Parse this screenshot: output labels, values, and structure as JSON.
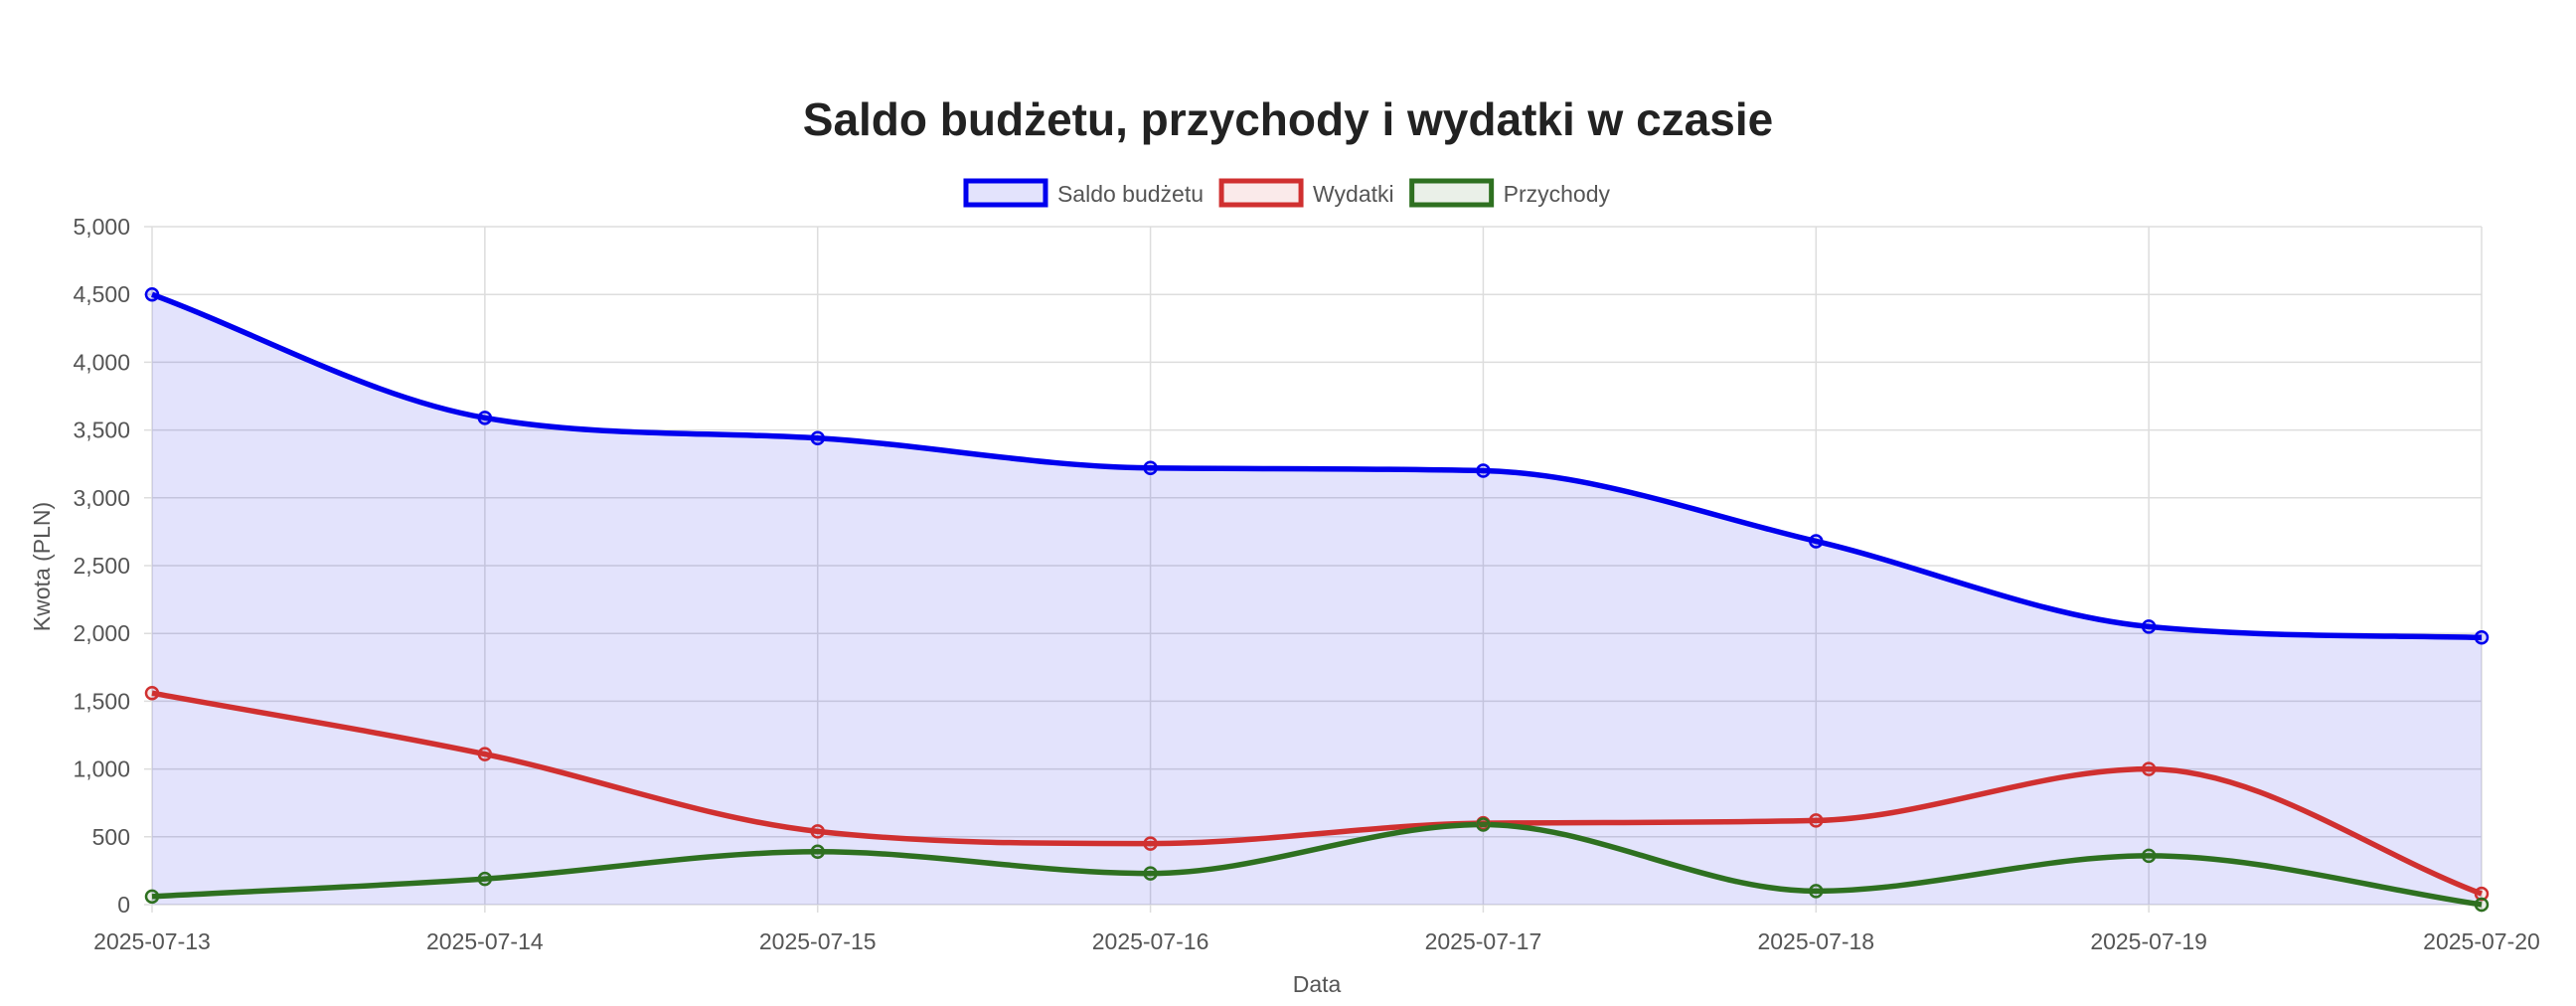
{
  "chart_data": {
    "type": "line",
    "title": "Saldo budżetu, przychody i wydatki w czasie",
    "xlabel": "Data",
    "ylabel": "Kwota (PLN)",
    "categories": [
      "2025-07-13",
      "2025-07-14",
      "2025-07-15",
      "2025-07-16",
      "2025-07-17",
      "2025-07-18",
      "2025-07-19",
      "2025-07-20"
    ],
    "ylim": [
      0,
      5000
    ],
    "yticks": [
      "0",
      "500",
      "1,000",
      "1,500",
      "2,000",
      "2,500",
      "3,000",
      "3,500",
      "4,000",
      "4,500",
      "5,000"
    ],
    "grid": true,
    "legend_position": "top",
    "series": [
      {
        "name": "Saldo budżetu",
        "color": "#0000ee",
        "fill": "rgba(0,0,230,0.11)",
        "filled": true,
        "values": [
          4500,
          3590,
          3440,
          3220,
          3200,
          2680,
          2050,
          1970
        ]
      },
      {
        "name": "Wydatki",
        "color": "#d03030",
        "fill": "rgba(208,48,48,0.1)",
        "filled": false,
        "values": [
          1560,
          1110,
          540,
          450,
          600,
          620,
          1000,
          80
        ]
      },
      {
        "name": "Przychody",
        "color": "#2e7020",
        "fill": "rgba(46,112,32,0.1)",
        "filled": false,
        "values": [
          60,
          190,
          390,
          230,
          590,
          100,
          360,
          0
        ]
      }
    ]
  }
}
